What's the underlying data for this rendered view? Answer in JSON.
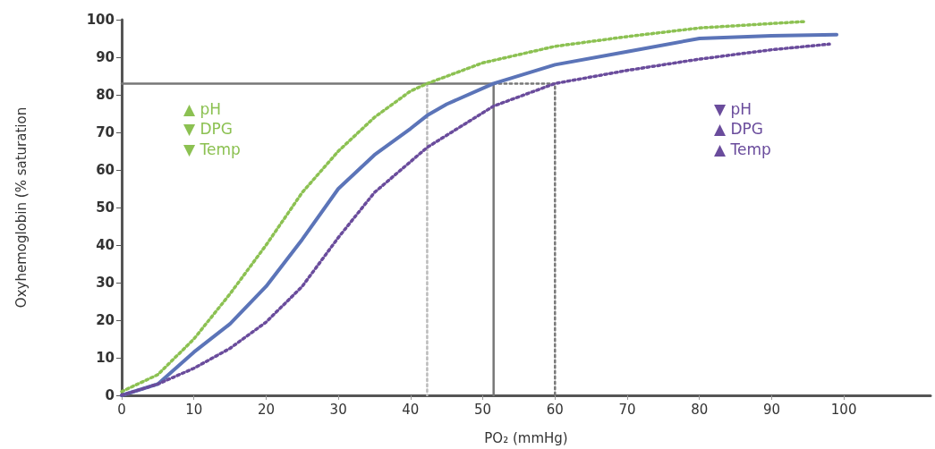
{
  "chart_data": {
    "type": "line",
    "xlabel": "PO₂ (mmHg)",
    "ylabel": "Oxyhemoglobin (% saturation",
    "xlim": [
      0,
      112
    ],
    "xticks": [
      0,
      10,
      20,
      30,
      40,
      50,
      60,
      70,
      80,
      90,
      100
    ],
    "ylim": [
      0,
      100
    ],
    "yticks": [
      0,
      10,
      20,
      30,
      40,
      50,
      60,
      70,
      80,
      90,
      100
    ],
    "grid": false,
    "marker": "none",
    "annotations": [
      "▲ pH",
      "▼ DPG",
      "▼ Temp",
      "▼ pH",
      "▲ DPG",
      "▲ Temp"
    ],
    "series": [
      {
        "color": "#5b74b8",
        "line_style": "solid",
        "x": [
          0,
          5,
          10,
          15,
          20,
          25,
          30,
          35,
          40,
          42.3,
          45,
          51.5,
          60,
          70,
          80,
          90,
          99
        ],
        "values": [
          0,
          3,
          11.5,
          19,
          29,
          41.5,
          55,
          64,
          71,
          74.5,
          77.5,
          83,
          88,
          91.5,
          95,
          95.7,
          96
        ]
      },
      {
        "color": "#8cc152",
        "line_style": "dotted",
        "x": [
          0,
          5,
          10,
          15,
          20,
          25,
          30,
          35,
          40,
          42.3,
          50,
          60,
          70,
          80,
          94.5
        ],
        "values": [
          1,
          5.5,
          15,
          27,
          40,
          54,
          65,
          74,
          81,
          83,
          88.5,
          92.9,
          95.5,
          97.8,
          99.5
        ]
      },
      {
        "color": "#6a4c9c",
        "line_style": "dotted",
        "x": [
          0,
          5,
          10,
          15,
          20,
          25,
          30,
          35,
          42.3,
          51.5,
          60,
          70,
          80,
          90,
          98
        ],
        "values": [
          0,
          3,
          7.2,
          12.5,
          19.5,
          29,
          42,
          54,
          66,
          77,
          83,
          86.5,
          89.5,
          92,
          93.5
        ]
      },
      {
        "color": "#777777",
        "line_style": "solid",
        "x": [
          0,
          51.5,
          51.5
        ],
        "values": [
          83,
          83,
          0
        ]
      },
      {
        "color": "#777777",
        "line_style": "dotted",
        "x": [
          51.5,
          60,
          60
        ],
        "values": [
          83,
          83,
          0
        ]
      },
      {
        "color": "#bbbbbb",
        "line_style": "dotted",
        "x": [
          42.3,
          42.3
        ],
        "values": [
          83,
          0
        ]
      }
    ]
  }
}
